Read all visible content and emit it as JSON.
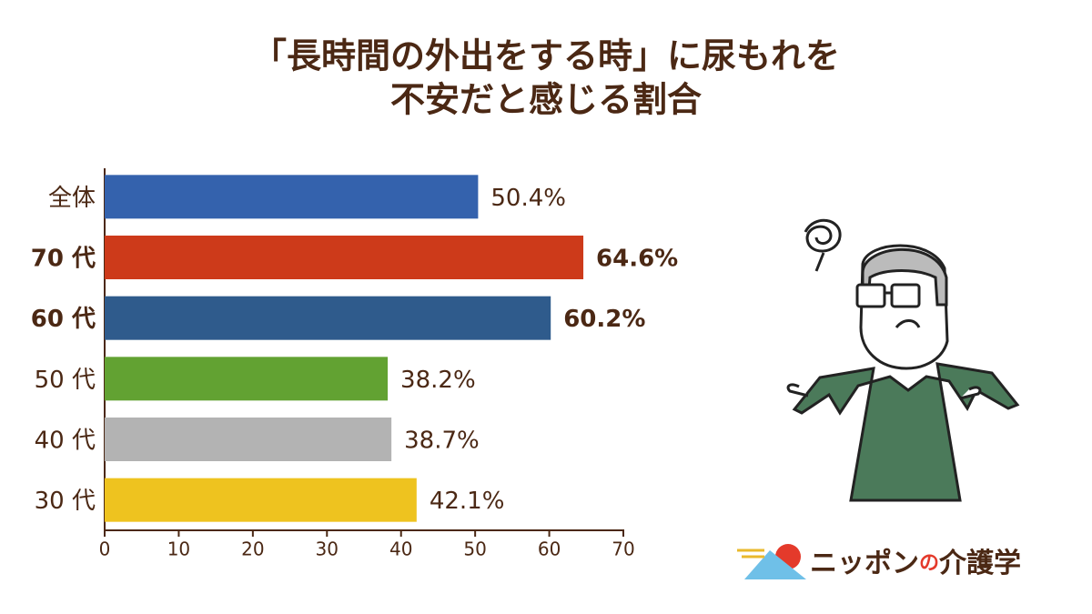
{
  "chart_data": {
    "type": "barh",
    "title": [
      "「長時間の外出をする時」に尿もれを",
      "不安だと感じる割合"
    ],
    "categories": [
      "全体",
      "70 代",
      "60 代",
      "50 代",
      "40 代",
      "30 代"
    ],
    "values": [
      50.4,
      64.6,
      60.2,
      38.2,
      38.7,
      42.1
    ],
    "value_labels": [
      "50.4%",
      "64.6%",
      "60.2%",
      "38.2%",
      "38.7%",
      "42.1%"
    ],
    "colors": [
      "#3462ad",
      "#cd3a1a",
      "#2f5b8c",
      "#62a232",
      "#b3b3b3",
      "#eec31f"
    ],
    "label_colors": [
      "#4b2814",
      "#f0921f",
      "#f0921f",
      "#4b2814",
      "#4b2814",
      "#4b2814"
    ],
    "label_bold": [
      false,
      true,
      true,
      false,
      false,
      false
    ],
    "xlim": [
      0,
      70
    ],
    "xticks": [
      0,
      10,
      20,
      30,
      40,
      50,
      60,
      70
    ]
  },
  "logo": {
    "parts": [
      "ニッポン",
      "の",
      "介護学"
    ]
  }
}
